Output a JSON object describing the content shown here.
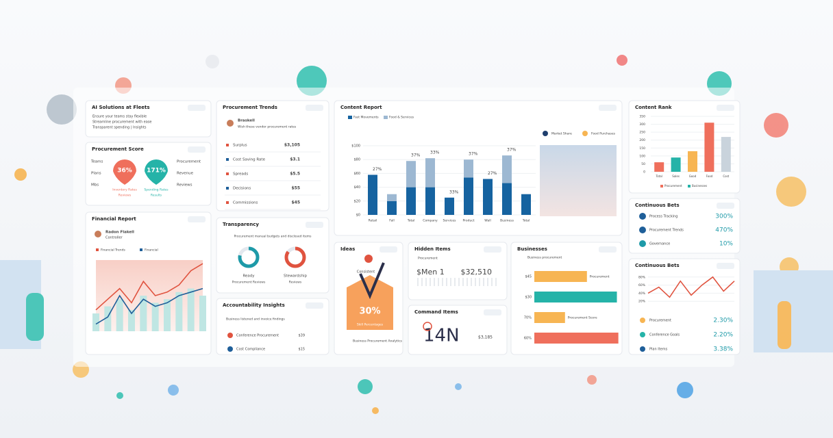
{
  "solutions": {
    "title": "AI Solutions at Fleets",
    "lines": [
      "Ensure your teams stay flexible",
      "Streamline procurement with ease",
      "Transparent spending | Insights"
    ]
  },
  "score": {
    "title": "Procurement Score",
    "left": [
      "Teams",
      "Plans",
      "Mbs"
    ],
    "right": [
      "Procurement",
      "Revenue",
      "Reviews"
    ],
    "pins": [
      {
        "value": "36%",
        "caption": "Inventory Rates",
        "sub": "Reviews",
        "color": "#ef6f5c"
      },
      {
        "value": "171%",
        "caption": "Spending Rates",
        "sub": "Results",
        "color": "#25b3a8"
      }
    ]
  },
  "financial": {
    "title": "Financial Report",
    "user": "Radon Flakell",
    "role": "Controller",
    "legend": [
      "Financial Trends",
      "Financial"
    ],
    "ylim": [
      0,
      100
    ],
    "bars": [
      25,
      35,
      45,
      30,
      50,
      40,
      45,
      55,
      60,
      50
    ],
    "series": [
      {
        "color": "#e0533f",
        "values": [
          30,
          45,
          60,
          40,
          70,
          50,
          55,
          65,
          85,
          95
        ]
      },
      {
        "color": "#1f5f99",
        "values": [
          10,
          20,
          50,
          25,
          45,
          35,
          40,
          50,
          55,
          60
        ]
      }
    ]
  },
  "trends": {
    "title": "Procurement Trends",
    "user": "Braskell",
    "desc": "Wish these vendor procurement rates",
    "rows": [
      {
        "name": "Surplus",
        "value": "$3,105"
      },
      {
        "name": "Cost Saving Rate",
        "value": "$3.1"
      },
      {
        "name": "Spreads",
        "value": "$5.5"
      },
      {
        "name": "Decisions",
        "value": "$55"
      },
      {
        "name": "Commissions",
        "value": "$45"
      }
    ]
  },
  "transparency": {
    "title": "Transparency",
    "desc": "Procurement manual budgets and disclosed items",
    "donuts": [
      {
        "label": "Ready",
        "sub": "Procurement Reviews",
        "percent": 78,
        "color": "#1e9aa8"
      },
      {
        "label": "Stewardship",
        "sub": "Reviews",
        "percent": 85,
        "color": "#e0533f"
      }
    ]
  },
  "accountability": {
    "title": "Accountability Insights",
    "desc": "Business listened and invoice findings",
    "rows": [
      {
        "name": "Conference Procurement",
        "value": "$39"
      },
      {
        "name": "Cost Compliance",
        "value": "$15"
      }
    ]
  },
  "content": {
    "title": "Content Report",
    "legend": [
      "Fast Movements",
      "Food & Services"
    ],
    "markers": [
      "Market Share",
      "Food Purchases"
    ],
    "ylim": [
      0,
      100
    ],
    "yticks": [
      {
        "value": 0,
        "label": "$0"
      },
      {
        "value": 20,
        "label": "$20"
      },
      {
        "value": 40,
        "label": "$40"
      },
      {
        "value": 60,
        "label": "$60"
      },
      {
        "value": 80,
        "label": "$80"
      },
      {
        "value": 100,
        "label": "$100"
      }
    ],
    "categories": [
      "Retail",
      "Fall",
      "Total",
      "Company",
      "Services",
      "Product",
      "Wall",
      "Business",
      "Total"
    ],
    "series": [
      {
        "name": "Fast Movements",
        "color": "#1663a0",
        "values": [
          58,
          20,
          40,
          40,
          25,
          54,
          52,
          46,
          30
        ]
      },
      {
        "name": "Food & Services",
        "color": "#9db8d2",
        "values": [
          0,
          10,
          38,
          42,
          0,
          26,
          0,
          40,
          0
        ]
      }
    ],
    "labels": [
      "27%",
      "",
      "37%",
      "33%",
      "33%",
      "37%",
      "27%",
      "37%",
      ""
    ]
  },
  "ideas": {
    "title": "Ideas",
    "sub": "Consistent",
    "value": "30%",
    "caption": "Skill Percentages",
    "note": "Business Procurement Analytics"
  },
  "hidden": {
    "title": "Hidden Items",
    "label": "Procurement",
    "left": "$Men 1",
    "right": "$32,510"
  },
  "command": {
    "title": "Command Items",
    "value": "14N",
    "sub": "$3,185"
  },
  "business": {
    "title": "Businesses",
    "legend": "Business procurement",
    "xlim": [
      0,
      120
    ],
    "values": [
      72,
      113,
      42,
      115
    ],
    "value_labels": [
      "$45",
      "$30",
      "70%",
      "60%"
    ],
    "colors": [
      "#f7b553",
      "#25b3a8",
      "#f7b553",
      "#ef6f5c"
    ],
    "notes": [
      "Procurement",
      "",
      "Procurement Score",
      ""
    ]
  },
  "rank": {
    "title": "Content Rank",
    "ylim": [
      0,
      350
    ],
    "yticks": [
      0,
      50,
      100,
      150,
      200,
      250,
      300,
      350
    ],
    "values": [
      60,
      90,
      130,
      310,
      220
    ],
    "colors": [
      "#ef6f5c",
      "#25b3a8",
      "#f7b553",
      "#ef6f5c",
      "#c9d3dc"
    ],
    "categories": [
      "Total",
      "Sales",
      "Good",
      "Food",
      "Cost"
    ],
    "legend": [
      "Procurement",
      "Businesses"
    ]
  },
  "bets": {
    "title": "Continuous Bets",
    "rows": [
      {
        "name": "Process Tracking",
        "value": "300%",
        "color": "#1f5f99"
      },
      {
        "name": "Procurement Trends",
        "value": "470%",
        "color": "#1f5f99"
      },
      {
        "name": "Governance",
        "value": "10%",
        "color": "#1e9aa8"
      }
    ]
  },
  "bets2": {
    "title": "Continuous Bets",
    "ylim": [
      0,
      100
    ],
    "yticks": [
      {
        "value": 20,
        "label": "20%"
      },
      {
        "value": 40,
        "label": "40%"
      },
      {
        "value": 60,
        "label": "60%"
      },
      {
        "value": 80,
        "label": "80%"
      }
    ],
    "values": [
      40,
      55,
      30,
      70,
      35,
      60,
      80,
      45,
      70
    ],
    "rows": [
      {
        "name": "Procurement",
        "value": "2.30%",
        "color": "#f7b553"
      },
      {
        "name": "Conference Goals",
        "value": "2.20%",
        "color": "#25b3a8"
      },
      {
        "name": "Plan Items",
        "value": "3.38%",
        "color": "#1f5f99"
      }
    ]
  }
}
